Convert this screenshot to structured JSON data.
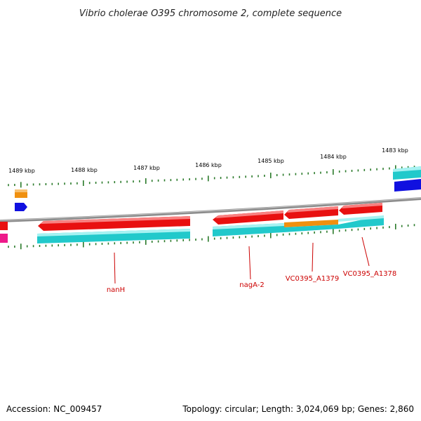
{
  "title": "Vibrio cholerae O395 chromosome 2, complete sequence",
  "accession": "Accession: NC_009457",
  "summary": "Topology: circular; Length: 3,024,069 bp; Genes: 2,860",
  "kbp_labels": [
    "1489 kbp",
    "1488 kbp",
    "1487 kbp",
    "1486 kbp",
    "1485 kbp",
    "1484 kbp",
    "1483 kbp"
  ],
  "gene_labels": [
    "nanH",
    "nagA-2",
    "VC0395_A1379",
    "VC0395_A1378"
  ],
  "colors": {
    "backbone": "#8c8c8c",
    "cds": "#e81010",
    "cds_alt": "#21c9cb",
    "orange": "#f0900f",
    "blue": "#1010e0",
    "magenta": "#ee1a8a",
    "tick": "#2a7a2a",
    "label": "#cc0000"
  }
}
